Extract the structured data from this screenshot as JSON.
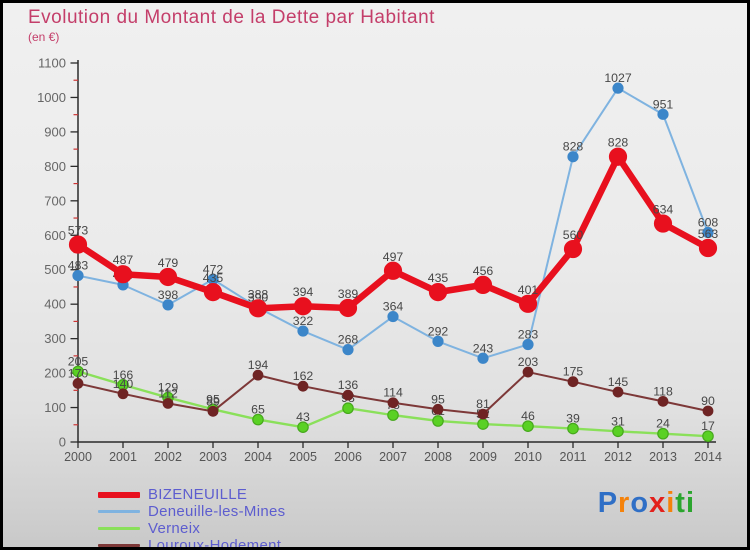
{
  "title": "Evolution du Montant de la Dette par Habitant",
  "subtitle": "(en €)",
  "chart_data": {
    "type": "line",
    "title": "Evolution du Montant de la Dette par Habitant",
    "unit_label": "(en €)",
    "x": [
      "2000",
      "2001",
      "2002",
      "2003",
      "2004",
      "2005",
      "2006",
      "2007",
      "2008",
      "2009",
      "2010",
      "2011",
      "2012",
      "2013",
      "2014"
    ],
    "ylim": [
      0,
      1100
    ],
    "ytick_step": 100,
    "ytick_minor_step": 50,
    "grid": false,
    "legend_position": "bottom-left",
    "axis_color": "#2b2b2b",
    "minor_tick_color": "#cc3333",
    "tick_label_color": "#666666",
    "x_label_color": "#555555",
    "data_label_color": "#474747",
    "series": [
      {
        "name": "BIZENEUILLE",
        "color": "#e8101e",
        "dot_color": "#e8101e",
        "dot_stroke": "#e8101e",
        "line_width": 6.5,
        "dot_r": 8.5,
        "label_gap": 14,
        "values": [
          573,
          487,
          479,
          435,
          388,
          394,
          389,
          497,
          435,
          456,
          401,
          560,
          828,
          634,
          563
        ]
      },
      {
        "name": "Deneuille-les-Mines",
        "color": "#7fb3e0",
        "dot_color": "#3c86c9",
        "dot_stroke": "#3c86c9",
        "line_width": 2.0,
        "dot_r": 5.0,
        "label_gap": 10,
        "values": [
          483,
          456,
          398,
          472,
          390,
          322,
          268,
          364,
          292,
          243,
          283,
          828,
          1027,
          951,
          608
        ]
      },
      {
        "name": "Verneix",
        "color": "#8ae05a",
        "dot_color": "#5ad124",
        "dot_stroke": "#46a81c",
        "line_width": 2.4,
        "dot_r": 5.2,
        "label_gap": 10,
        "values": [
          205,
          166,
          129,
          95,
          65,
          43,
          98,
          78,
          61,
          52,
          46,
          39,
          31,
          24,
          17
        ]
      },
      {
        "name": "Louroux-Hodement",
        "color": "#7d3838",
        "dot_color": "#6f2424",
        "dot_stroke": "#6f2424",
        "line_width": 2.0,
        "dot_r": 4.8,
        "label_gap": 10,
        "values": [
          170,
          140,
          112,
          89,
          194,
          162,
          136,
          114,
          95,
          81,
          203,
          175,
          145,
          118,
          90
        ]
      }
    ],
    "draw_order": [
      1,
      2,
      3,
      0
    ]
  },
  "legend": {
    "items": [
      {
        "label": "BIZENEUILLE",
        "color": "#e8101e",
        "thickness": 6
      },
      {
        "label": "Deneuille-les-Mines",
        "color": "#7fb3e0",
        "thickness": 2.5
      },
      {
        "label": "Verneix",
        "color": "#8ae05a",
        "thickness": 2.5
      },
      {
        "label": "Louroux-Hodement",
        "color": "#7d3838",
        "thickness": 2.5
      }
    ]
  },
  "logo": {
    "text": "Proxiti",
    "letters": [
      {
        "ch": "P",
        "color": "#2f6fc6"
      },
      {
        "ch": "r",
        "color": "#f5820a"
      },
      {
        "ch": "o",
        "color": "#2f6fc6"
      },
      {
        "ch": "x",
        "color": "#e3201b"
      },
      {
        "ch": "i",
        "color": "#f5820a"
      },
      {
        "ch": "t",
        "color": "#2ba52e"
      },
      {
        "ch": "i",
        "color": "#2ba52e"
      }
    ]
  }
}
